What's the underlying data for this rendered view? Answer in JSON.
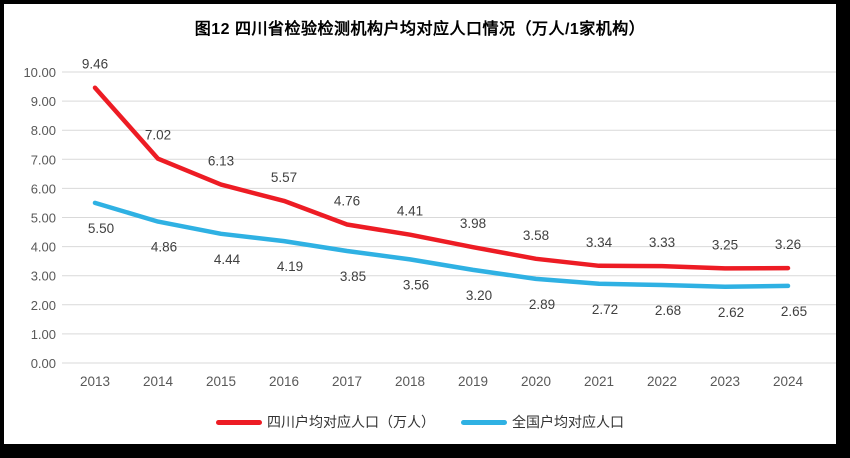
{
  "page": {
    "border_color": "#000000",
    "background_color": "#ffffff"
  },
  "chart_data": {
    "type": "line",
    "title": "图12 四川省检验检测机构户均对应人口情况（万人/1家机构）",
    "categories": [
      "2013",
      "2014",
      "2015",
      "2016",
      "2017",
      "2018",
      "2019",
      "2020",
      "2021",
      "2022",
      "2023",
      "2024"
    ],
    "series": [
      {
        "name": "四川户均对应人口（万人）",
        "color": "#ED1C24",
        "values": [
          9.46,
          7.02,
          6.13,
          5.57,
          4.76,
          4.41,
          3.98,
          3.58,
          3.34,
          3.33,
          3.25,
          3.26
        ],
        "labels": [
          "9.46",
          "7.02",
          "6.13",
          "5.57",
          "4.76",
          "4.41",
          "3.98",
          "3.58",
          "3.34",
          "3.33",
          "3.25",
          "3.26"
        ],
        "label_side": "above"
      },
      {
        "name": "全国户均对应人口",
        "color": "#2FB1E3",
        "values": [
          5.5,
          4.86,
          4.44,
          4.19,
          3.85,
          3.56,
          3.2,
          2.89,
          2.72,
          2.68,
          2.62,
          2.65
        ],
        "labels": [
          "5.50",
          "4.86",
          "4.44",
          "4.19",
          "3.85",
          "3.56",
          "3.20",
          "2.89",
          "2.72",
          "2.68",
          "2.62",
          "2.65"
        ],
        "label_side": "below"
      }
    ],
    "ylim": [
      0,
      10
    ],
    "ytick_step": 1,
    "ytick_labels": [
      "0.00",
      "1.00",
      "2.00",
      "3.00",
      "4.00",
      "5.00",
      "6.00",
      "7.00",
      "8.00",
      "9.00",
      "10.00"
    ],
    "grid": true,
    "gridline_color": "#D9D9D9",
    "tick_label_color": "#595959",
    "data_label_color": "#404040",
    "legend_position": "bottom"
  }
}
